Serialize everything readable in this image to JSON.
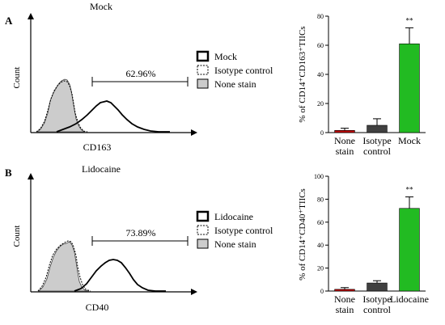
{
  "panels": [
    {
      "letter": "A",
      "title": "Mock",
      "ylabel": "Count",
      "xlabel": "CD163",
      "gate_label": "62.96%",
      "legend": [
        "Mock",
        "Isotype control",
        "None stain"
      ]
    },
    {
      "letter": "B",
      "title": "Lidocaine",
      "ylabel": "Count",
      "xlabel": "CD40",
      "gate_label": "73.89%",
      "legend": [
        "Lidocaine",
        "Isotype control",
        "None stain"
      ]
    }
  ],
  "chart_data": [
    {
      "type": "bar",
      "ylabel": "% of CD14⁺CD163⁺TIICs",
      "categories": [
        [
          "None",
          "stain"
        ],
        [
          "Isotype",
          "control"
        ],
        [
          "Mock"
        ]
      ],
      "values": [
        1.5,
        5,
        61
      ],
      "errors": [
        1.5,
        4.5,
        11
      ],
      "colors": [
        "#c00000",
        "#404040",
        "#22bb22"
      ],
      "ylim": [
        0,
        80
      ],
      "yticks": [
        0,
        20,
        40,
        60,
        80
      ],
      "annotation": {
        "category_index": 2,
        "text": "**"
      }
    },
    {
      "type": "bar",
      "ylabel": "% of CD14⁺CD40⁺TIICs",
      "categories": [
        [
          "None",
          "stain"
        ],
        [
          "Isotype",
          "control"
        ],
        [
          "Lidocaine"
        ]
      ],
      "values": [
        1.5,
        7,
        72
      ],
      "errors": [
        1.5,
        2,
        10
      ],
      "colors": [
        "#c00000",
        "#404040",
        "#22bb22"
      ],
      "ylim": [
        0,
        100
      ],
      "yticks": [
        0,
        20,
        40,
        60,
        80,
        100
      ],
      "annotation": {
        "category_index": 2,
        "text": "**"
      }
    }
  ]
}
